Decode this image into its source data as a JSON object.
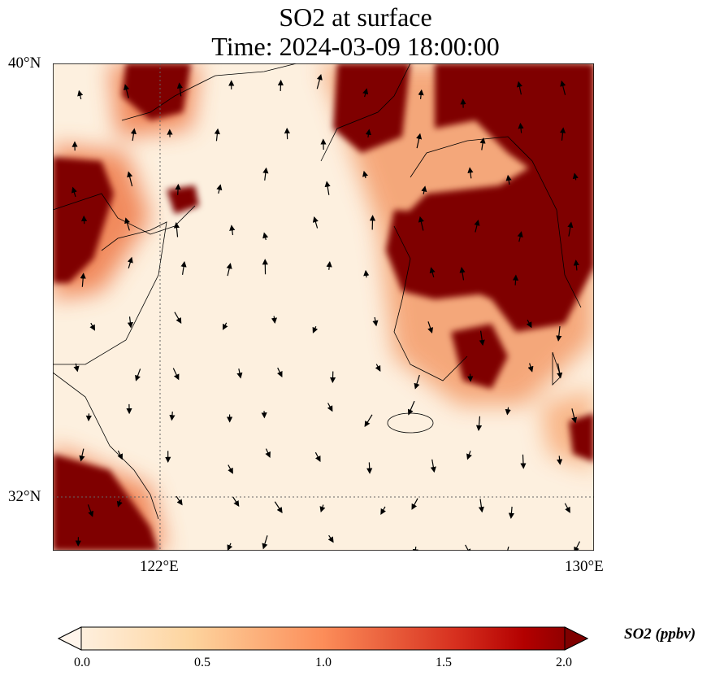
{
  "title": {
    "line1": "SO2 at surface",
    "line2": "Time: 2024-03-09 18:00:00"
  },
  "axes": {
    "lat_labels": [
      "40°N",
      "32°N"
    ],
    "lon_labels": [
      "122°E",
      "130°E"
    ],
    "lon_range": [
      120,
      130
    ],
    "lat_range": [
      31,
      40
    ]
  },
  "colorbar": {
    "label": "SO2 (ppbv)",
    "ticks": [
      "0.0",
      "0.5",
      "1.0",
      "1.5",
      "2.0"
    ],
    "range": [
      0,
      2
    ],
    "extend": "both",
    "colormap": [
      "#fff5eb",
      "#fdd49e",
      "#fc8d59",
      "#d7301f",
      "#b30000",
      "#7f0000"
    ]
  },
  "colors": {
    "background": "#fdf0df",
    "max": "#7f0000"
  }
}
